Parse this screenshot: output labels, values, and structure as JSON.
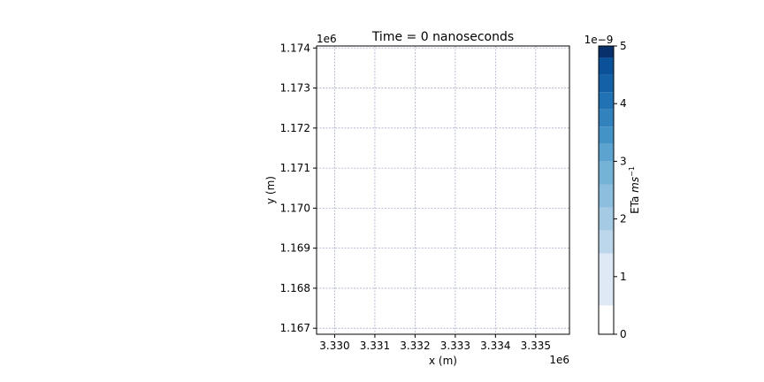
{
  "chart_data": {
    "type": "heatmap",
    "title": "Time = 0 nanoseconds",
    "xlabel": "x (m)",
    "ylabel": "y (m)",
    "x_offset_label": "1e6",
    "y_offset_label": "1e6",
    "xlim": [
      3.32955,
      3.33584
    ],
    "ylim": [
      1.16685,
      1.17405
    ],
    "x_ticks": [
      3.33,
      3.331,
      3.332,
      3.333,
      3.334,
      3.335
    ],
    "x_tick_labels": [
      "3.330",
      "3.331",
      "3.332",
      "3.333",
      "3.334",
      "3.335"
    ],
    "y_ticks": [
      1.167,
      1.168,
      1.169,
      1.17,
      1.171,
      1.172,
      1.173,
      1.174
    ],
    "y_tick_labels": [
      "1.167",
      "1.168",
      "1.169",
      "1.170",
      "1.171",
      "1.172",
      "1.173",
      "1.174"
    ],
    "grid": true,
    "field_values": [],
    "colorbar": {
      "label": "ETa ms⁻¹",
      "label_text": "ETa ",
      "label_unit": "ms",
      "label_exponent": "−1",
      "offset_label": "1e−9",
      "min": 0,
      "max": 5,
      "ticks": [
        0,
        1,
        2,
        3,
        4,
        5
      ],
      "tick_labels": [
        "0",
        "1",
        "2",
        "3",
        "4",
        "5"
      ],
      "levels": [
        0.0,
        0.5,
        1.4,
        1.8,
        2.2,
        2.6,
        3.0,
        3.3,
        3.6,
        3.9,
        4.2,
        4.5,
        4.8,
        5.0
      ],
      "colors": [
        "#ffffff",
        "#dfe9f5",
        "#bcd6eb",
        "#a5cbe4",
        "#8dbede",
        "#74b2d6",
        "#5ca3d0",
        "#4493c6",
        "#3282be",
        "#2171b5",
        "#1561a8",
        "#0a5199",
        "#08306b"
      ],
      "colormap": "Blues"
    }
  }
}
